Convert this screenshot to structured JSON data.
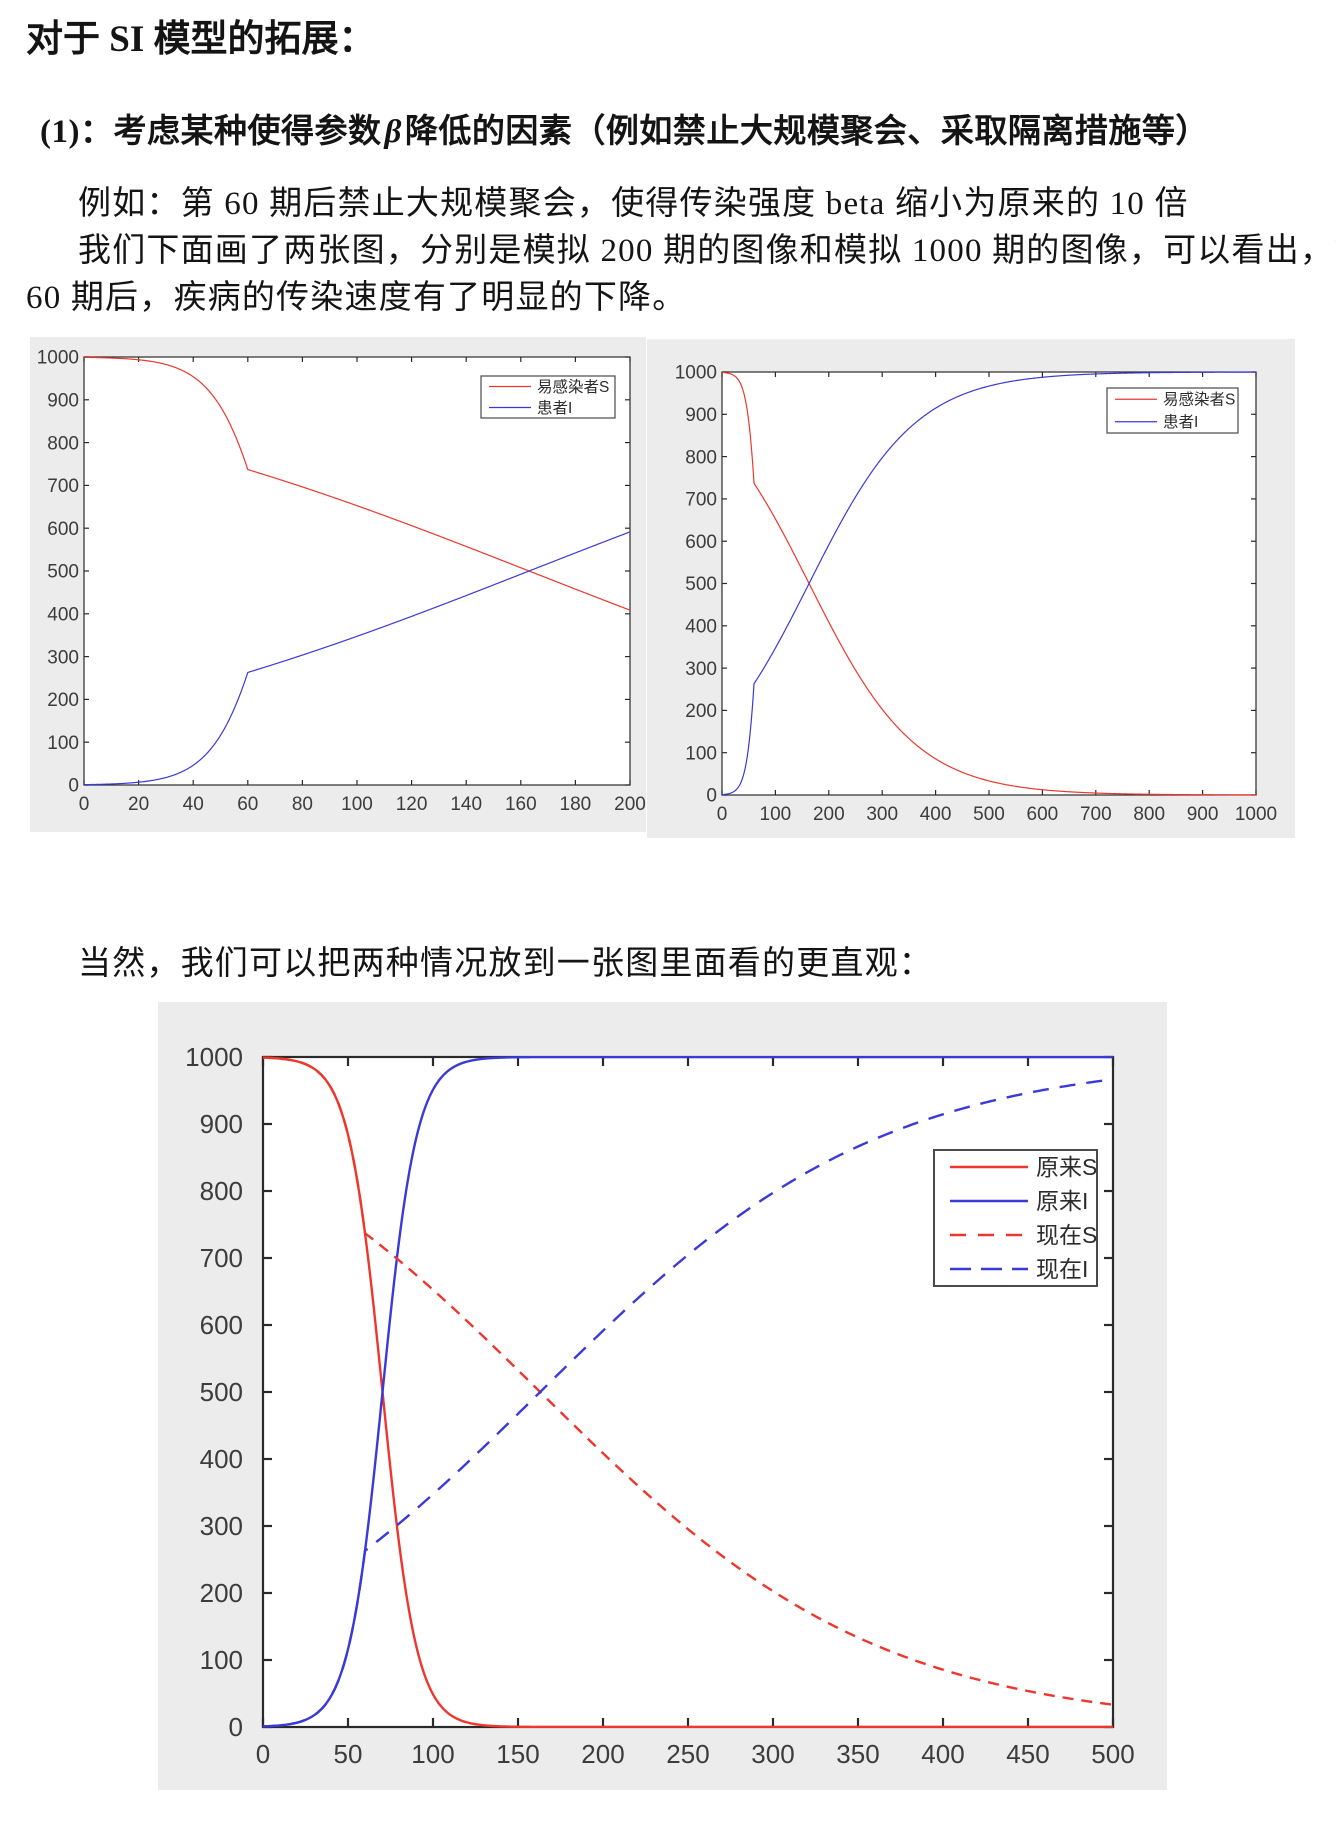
{
  "document": {
    "title": "对于 SI 模型的拓展：",
    "heading": {
      "prefix": "(1)：考虑某种使得参数",
      "beta": "β",
      "suffix": "降低的因素（例如禁止大规模聚会、采取隔离措施等）"
    },
    "paragraph_lines": [
      "例如：第 60 期后禁止大规模聚会，使得传染强度 beta 缩小为原来的 10 倍",
      "我们下面画了两张图，分别是模拟 200 期的图像和模拟 1000 期的图像，可以看出，第",
      "60 期后，疾病的传染速度有了明显的下降。"
    ],
    "note_line": "当然，我们可以把两种情况放到一张图里面看的更直观："
  },
  "colors": {
    "series_red": "#ee372c",
    "series_blue": "#3a3ad8",
    "panel_bg": "#ececec",
    "plot_bg": "#ffffff",
    "axis": "#2a2a2a",
    "tick_label": "#3c3c3c",
    "legend_border": "#4a4a4a"
  },
  "chart_data": [
    {
      "type": "line",
      "title": "",
      "xlabel": "",
      "ylabel": "",
      "xlim": [
        0,
        200
      ],
      "ylim": [
        0,
        1000
      ],
      "xticks": [
        0,
        20,
        40,
        60,
        80,
        100,
        120,
        140,
        160,
        180,
        200
      ],
      "yticks": [
        0,
        100,
        200,
        300,
        400,
        500,
        600,
        700,
        800,
        900,
        1000
      ],
      "grid": false,
      "legend": {
        "position": "northeast",
        "entries": [
          {
            "label": "易感染者S",
            "color": "red",
            "style": "solid"
          },
          {
            "label": "患者I",
            "color": "blue",
            "style": "solid"
          }
        ]
      },
      "series": [
        {
          "name": "易感染者S",
          "color": "red",
          "style": "solid",
          "role": "S",
          "model": {
            "kind": "logistic",
            "N": 1000,
            "K": 1130.5,
            "beta": 0.1,
            "switch_t": 60,
            "beta_after": 0.01,
            "complement": true,
            "tmax": 200
          },
          "keypoints": {
            "x": [
              0,
              20,
              40,
              60,
              80,
              100,
              120,
              140,
              160,
              180,
              200
            ],
            "y": [
              999,
              993,
              954,
              737,
              697,
              653,
              606,
              557,
              508,
              458,
              409
            ]
          }
        },
        {
          "name": "患者I",
          "color": "blue",
          "style": "solid",
          "role": "I",
          "model": {
            "kind": "logistic",
            "N": 1000,
            "K": 1130.5,
            "beta": 0.1,
            "switch_t": 60,
            "beta_after": 0.01,
            "complement": false,
            "tmax": 200
          },
          "keypoints": {
            "x": [
              0,
              20,
              40,
              60,
              80,
              100,
              120,
              140,
              160,
              180,
              200
            ],
            "y": [
              1,
              7,
              46,
              263,
              303,
              347,
              394,
              443,
              492,
              542,
              591
            ]
          }
        }
      ]
    },
    {
      "type": "line",
      "title": "",
      "xlabel": "",
      "ylabel": "",
      "xlim": [
        0,
        1000
      ],
      "ylim": [
        0,
        1000
      ],
      "xticks": [
        0,
        100,
        200,
        300,
        400,
        500,
        600,
        700,
        800,
        900,
        1000
      ],
      "yticks": [
        0,
        100,
        200,
        300,
        400,
        500,
        600,
        700,
        800,
        900,
        1000
      ],
      "grid": false,
      "legend": {
        "position": "northeast",
        "entries": [
          {
            "label": "易感染者S",
            "color": "red",
            "style": "solid"
          },
          {
            "label": "患者I",
            "color": "blue",
            "style": "solid"
          }
        ]
      },
      "series": [
        {
          "name": "易感染者S",
          "color": "red",
          "style": "solid",
          "role": "S",
          "model": {
            "kind": "logistic",
            "N": 1000,
            "K": 1130.5,
            "beta": 0.1,
            "switch_t": 60,
            "beta_after": 0.01,
            "complement": true,
            "tmax": 1000
          },
          "keypoints": {
            "x": [
              0,
              100,
              200,
              300,
              400,
              500,
              600,
              700,
              800,
              900,
              1000
            ],
            "y": [
              999,
              653,
              409,
              203,
              85,
              33,
              12,
              5,
              2,
              1,
              0
            ]
          }
        },
        {
          "name": "患者I",
          "color": "blue",
          "style": "solid",
          "role": "I",
          "model": {
            "kind": "logistic",
            "N": 1000,
            "K": 1130.5,
            "beta": 0.1,
            "switch_t": 60,
            "beta_after": 0.01,
            "complement": false,
            "tmax": 1000
          },
          "keypoints": {
            "x": [
              0,
              100,
              200,
              300,
              400,
              500,
              600,
              700,
              800,
              900,
              1000
            ],
            "y": [
              1,
              347,
              591,
              797,
              915,
              967,
              988,
              995,
              998,
              999,
              1000
            ]
          }
        }
      ]
    },
    {
      "type": "line",
      "title": "",
      "xlabel": "",
      "ylabel": "",
      "xlim": [
        0,
        500
      ],
      "ylim": [
        0,
        1000
      ],
      "xticks": [
        0,
        50,
        100,
        150,
        200,
        250,
        300,
        350,
        400,
        450,
        500
      ],
      "yticks": [
        0,
        100,
        200,
        300,
        400,
        500,
        600,
        700,
        800,
        900,
        1000
      ],
      "grid": false,
      "legend": {
        "position": "northeast",
        "entries": [
          {
            "label": "原来S",
            "color": "red",
            "style": "solid"
          },
          {
            "label": "原来I",
            "color": "blue",
            "style": "solid"
          },
          {
            "label": "现在S",
            "color": "red",
            "style": "dashed"
          },
          {
            "label": "现在I",
            "color": "blue",
            "style": "dashed"
          }
        ]
      },
      "series": [
        {
          "name": "原来S",
          "color": "red",
          "style": "solid",
          "role": "S",
          "model": {
            "kind": "logistic",
            "N": 1000,
            "K": 1130.5,
            "beta": 0.1,
            "switch_t": null,
            "beta_after": null,
            "complement": true,
            "tmax": 500
          },
          "keypoints": {
            "x": [
              0,
              50,
              100,
              150,
              200,
              250,
              300,
              350,
              400,
              450,
              500
            ],
            "y": [
              999,
              884,
              49,
              0,
              0,
              0,
              0,
              0,
              0,
              0,
              0
            ]
          }
        },
        {
          "name": "原来I",
          "color": "blue",
          "style": "solid",
          "role": "I",
          "model": {
            "kind": "logistic",
            "N": 1000,
            "K": 1130.5,
            "beta": 0.1,
            "switch_t": null,
            "beta_after": null,
            "complement": false,
            "tmax": 500
          },
          "keypoints": {
            "x": [
              0,
              50,
              100,
              150,
              200,
              250,
              300,
              350,
              400,
              450,
              500
            ],
            "y": [
              1,
              116,
              951,
              1000,
              1000,
              1000,
              1000,
              1000,
              1000,
              1000,
              1000
            ]
          }
        },
        {
          "name": "现在S",
          "color": "red",
          "style": "dashed",
          "role": "S",
          "model": {
            "kind": "logistic",
            "N": 1000,
            "K": 1130.5,
            "beta": 0.1,
            "switch_t": 60,
            "beta_after": 0.01,
            "complement": true,
            "tmax": 500
          },
          "keypoints": {
            "x": [
              0,
              50,
              100,
              150,
              200,
              250,
              300,
              350,
              400,
              450,
              500
            ],
            "y": [
              999,
              884,
              653,
              533,
              409,
              295,
              203,
              134,
              85,
              54,
              33
            ]
          }
        },
        {
          "name": "现在I",
          "color": "blue",
          "style": "dashed",
          "role": "I",
          "model": {
            "kind": "logistic",
            "N": 1000,
            "K": 1130.5,
            "beta": 0.1,
            "switch_t": 60,
            "beta_after": 0.01,
            "complement": false,
            "tmax": 500
          },
          "keypoints": {
            "x": [
              0,
              50,
              100,
              150,
              200,
              250,
              300,
              350,
              400,
              450,
              500
            ],
            "y": [
              1,
              116,
              347,
              467,
              591,
              705,
              797,
              866,
              915,
              946,
              967
            ]
          }
        }
      ]
    }
  ]
}
